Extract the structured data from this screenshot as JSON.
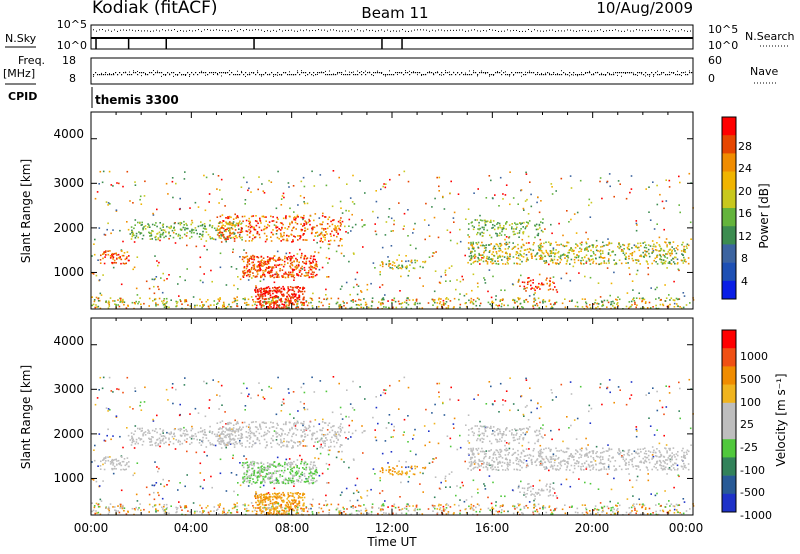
{
  "header": {
    "station": "Kodiak (fitACF)",
    "beam": "Beam 11",
    "date": "10/Aug/2009"
  },
  "strips": {
    "nsky_label": "N.Sky",
    "nsky_ticks": [
      "10^5",
      "10^0"
    ],
    "nsearch_label": "N.Search",
    "nsearch_ticks": [
      "10^5",
      "10^0"
    ],
    "freq_label_1": "Freq.",
    "freq_label_2": "[MHz]",
    "freq_ticks": [
      "18",
      "8"
    ],
    "nave_label": "Nave",
    "nave_ticks": [
      "60",
      "0"
    ],
    "cpid_label": "CPID",
    "cpid_value": "themis 3300"
  },
  "colors": {
    "power": [
      "#0a1ee6",
      "#1e50b4",
      "#3c64a0",
      "#3c8c50",
      "#64b43c",
      "#c8c81e",
      "#f0b400",
      "#f08c00",
      "#e64600",
      "#ff0000"
    ],
    "velocity": [
      "#1e32c8",
      "#285a96",
      "#32825a",
      "#50c83c",
      "#bebebe",
      "#bebebe",
      "#f0b41e",
      "#f08c00",
      "#f05014",
      "#ff0000"
    ]
  },
  "chart_data": [
    {
      "type": "heatmap",
      "quantity": "power",
      "ylabel": "Slant Range [km]",
      "ylim": [
        180,
        4600
      ],
      "yticks": [
        "4000",
        "3000",
        "2000",
        "1000"
      ],
      "xlim_hours": [
        0,
        24
      ],
      "colorbar_label": "Power [dB]",
      "colorbar_ticks": [
        "28",
        "24",
        "20",
        "16",
        "12",
        "8",
        "4"
      ],
      "colorbar_range": [
        0,
        32
      ]
    },
    {
      "type": "heatmap",
      "quantity": "velocity",
      "ylabel": "Slant Range [km]",
      "ylim": [
        180,
        4600
      ],
      "yticks": [
        "4000",
        "3000",
        "2000",
        "1000"
      ],
      "xlim_hours": [
        0,
        24
      ],
      "colorbar_label": "Velocity [m s⁻¹]",
      "colorbar_ticks": [
        "1000",
        "500",
        "100",
        "25",
        "-25",
        "-100",
        "-500",
        "-1000"
      ]
    }
  ],
  "xaxis": {
    "ticks": [
      "00:00",
      "04:00",
      "08:00",
      "12:00",
      "16:00",
      "20:00",
      "00:00"
    ],
    "label": "Time UT"
  }
}
